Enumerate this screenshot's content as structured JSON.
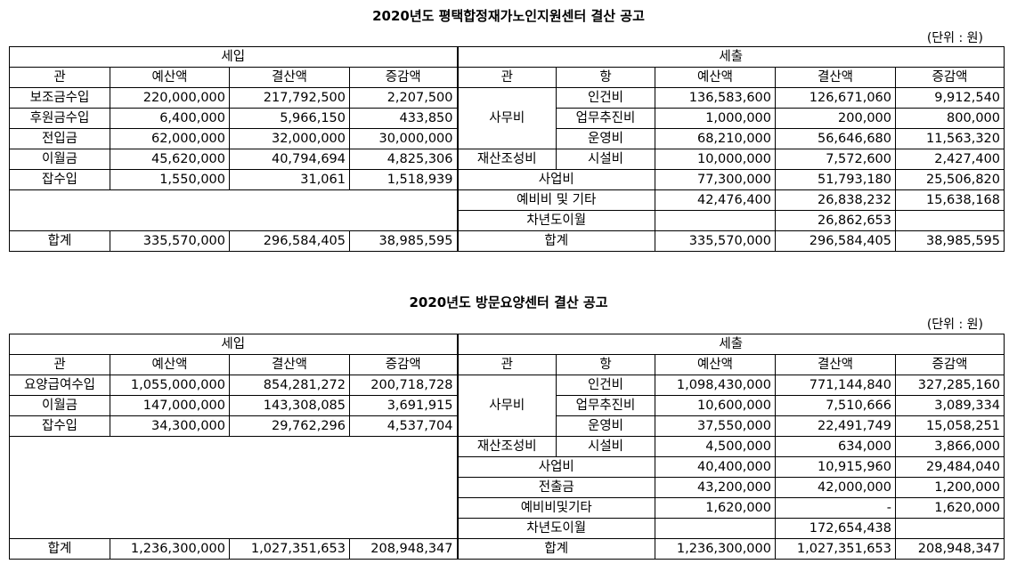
{
  "t1": {
    "title": "2020년도 평택합정재가노인지원센터 결산 공고",
    "unit": "(단위 : 원)",
    "income_header": "세입",
    "expense_header": "세출",
    "cols_in": [
      "관",
      "예산액",
      "결산액",
      "증감액"
    ],
    "cols_out": [
      "관",
      "항",
      "예산액",
      "결산액",
      "증감액"
    ],
    "income": [
      [
        "보조금수입",
        "220,000,000",
        "217,792,500",
        "2,207,500"
      ],
      [
        "후원금수입",
        "6,400,000",
        "5,966,150",
        "433,850"
      ],
      [
        "전입금",
        "62,000,000",
        "32,000,000",
        "30,000,000"
      ],
      [
        "이월금",
        "45,620,000",
        "40,794,694",
        "4,825,306"
      ],
      [
        "잡수입",
        "1,550,000",
        "31,061",
        "1,518,939"
      ]
    ],
    "office": "사무비",
    "asset": "재산조성비",
    "expense_items": [
      [
        "인건비",
        "136,583,600",
        "126,671,060",
        "9,912,540"
      ],
      [
        "업무추진비",
        "1,000,000",
        "200,000",
        "800,000"
      ],
      [
        "운영비",
        "68,210,000",
        "56,646,680",
        "11,563,320"
      ],
      [
        "시설비",
        "10,000,000",
        "7,572,600",
        "2,427,400"
      ]
    ],
    "expense_span": [
      [
        "사업비",
        "77,300,000",
        "51,793,180",
        "25,506,820"
      ],
      [
        "예비비 및 기타",
        "42,476,400",
        "26,838,232",
        "15,638,168"
      ],
      [
        "차년도이월",
        "",
        "26,862,653",
        ""
      ]
    ],
    "total_in": [
      "합계",
      "335,570,000",
      "296,584,405",
      "38,985,595"
    ],
    "total_out": [
      "합계",
      "335,570,000",
      "296,584,405",
      "38,985,595"
    ]
  },
  "t2": {
    "title": "2020년도 방문요양센터 결산 공고",
    "unit": "(단위 : 원)",
    "income_header": "세입",
    "expense_header": "세출",
    "cols_in": [
      "관",
      "예산액",
      "결산액",
      "증감액"
    ],
    "cols_out": [
      "관",
      "항",
      "예산액",
      "결산액",
      "증감액"
    ],
    "income": [
      [
        "요양급여수입",
        "1,055,000,000",
        "854,281,272",
        "200,718,728"
      ],
      [
        "이월금",
        "147,000,000",
        "143,308,085",
        "3,691,915"
      ],
      [
        "잡수입",
        "34,300,000",
        "29,762,296",
        "4,537,704"
      ]
    ],
    "office": "사무비",
    "asset": "재산조성비",
    "expense_items": [
      [
        "인건비",
        "1,098,430,000",
        "771,144,840",
        "327,285,160"
      ],
      [
        "업무추진비",
        "10,600,000",
        "7,510,666",
        "3,089,334"
      ],
      [
        "운영비",
        "37,550,000",
        "22,491,749",
        "15,058,251"
      ],
      [
        "시설비",
        "4,500,000",
        "634,000",
        "3,866,000"
      ]
    ],
    "expense_span": [
      [
        "사업비",
        "40,400,000",
        "10,915,960",
        "29,484,040"
      ],
      [
        "전출금",
        "43,200,000",
        "42,000,000",
        "1,200,000"
      ],
      [
        "예비비및기타",
        "1,620,000",
        "-",
        "1,620,000"
      ],
      [
        "차년도이월",
        "",
        "172,654,438",
        ""
      ]
    ],
    "total_in": [
      "합계",
      "1,236,300,000",
      "1,027,351,653",
      "208,948,347"
    ],
    "total_out": [
      "합계",
      "1,236,300,000",
      "1,027,351,653",
      "208,948,347"
    ]
  }
}
